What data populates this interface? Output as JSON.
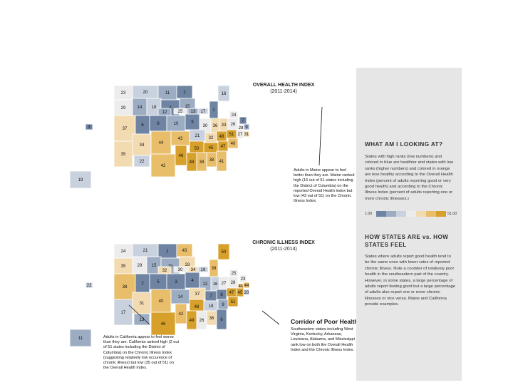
{
  "colors": {
    "scale": [
      "#6f84a3",
      "#9cadc3",
      "#c8d1dd",
      "#ececec",
      "#f2dbb1",
      "#e9be6a",
      "#d7a02a"
    ],
    "sidebar_bg": "#e6e6e6"
  },
  "maps": [
    {
      "title": "OVERALL HEALTH INDEX",
      "subtitle": "(2011-2014)",
      "tiles": [
        {
          "v": 23
        },
        {
          "v": 20
        },
        {
          "v": 11
        },
        {
          "v": 2
        },
        {
          "v": 16
        },
        {
          "v": 29
        },
        {
          "v": 14
        },
        {
          "v": 18
        },
        {
          "v": 4
        },
        {
          "v": 15
        },
        {
          "v": 1
        },
        {
          "v": 37
        },
        {
          "v": 6
        },
        {
          "v": 8
        },
        {
          "v": 10
        },
        {
          "v": 5
        },
        {
          "v": 30
        },
        {
          "v": 36
        },
        {
          "v": 33
        },
        {
          "v": 26
        },
        {
          "v": 35
        },
        {
          "v": 34
        },
        {
          "v": 44
        },
        {
          "v": 43
        },
        {
          "v": 21
        },
        {
          "v": 32
        },
        {
          "v": 48
        },
        {
          "v": 51
        },
        {
          "v": 27
        },
        {
          "v": 50
        },
        {
          "v": 45
        },
        {
          "v": 47
        },
        {
          "v": 40
        },
        {
          "v": 42
        },
        {
          "v": 46
        },
        {
          "v": 49
        },
        {
          "v": 39
        },
        {
          "v": 38
        },
        {
          "v": 41
        },
        {
          "v": 19
        },
        {
          "v": 3
        },
        {
          "v": 22
        },
        {
          "v": 12
        },
        {
          "v": 25
        },
        {
          "v": 13
        },
        {
          "v": 17
        },
        {
          "v": 24
        },
        {
          "v": 7
        },
        {
          "v": 28
        },
        {
          "v": 9
        },
        {
          "v": 31
        }
      ],
      "annotation": "Adults in Maine appear to feel better than they are. Maine ranked high (16 out of 51 states including the District of Columbia) on the reported Overall Health Index but low (43 out of 51) on the Chronic Illness Index."
    },
    {
      "title": "CHRONIC ILLNESS INDEX",
      "subtitle": "(2011-2014)",
      "tiles": [
        {
          "v": 24
        },
        {
          "v": 21
        },
        {
          "v": 1
        },
        {
          "v": 43
        },
        {
          "v": 50
        },
        {
          "v": 35
        },
        {
          "v": 29
        },
        {
          "v": 15
        },
        {
          "v": 10
        },
        {
          "v": 33
        },
        {
          "v": 39
        },
        {
          "v": 38
        },
        {
          "v": 2
        },
        {
          "v": 5
        },
        {
          "v": 3
        },
        {
          "v": 4
        },
        {
          "v": 12
        },
        {
          "v": 16
        },
        {
          "v": 27
        },
        {
          "v": 28
        },
        {
          "v": 17
        },
        {
          "v": 31
        },
        {
          "v": 40
        },
        {
          "v": 14
        },
        {
          "v": 37
        },
        {
          "v": 7
        },
        {
          "v": 8
        },
        {
          "v": 47
        },
        {
          "v": 45
        },
        {
          "v": 48
        },
        {
          "v": 18
        },
        {
          "v": 9
        },
        {
          "v": 51
        },
        {
          "v": 46
        },
        {
          "v": 42
        },
        {
          "v": 49
        },
        {
          "v": 26
        },
        {
          "v": 36
        },
        {
          "v": 6
        },
        {
          "v": 11
        },
        {
          "v": 22
        },
        {
          "v": 13
        },
        {
          "v": 32
        },
        {
          "v": 30
        },
        {
          "v": 34
        },
        {
          "v": 19
        },
        {
          "v": 25
        },
        {
          "v": 23
        },
        {
          "v": 41
        },
        {
          "v": 44
        },
        {
          "v": 20
        }
      ],
      "annotation": "Adults in California appear to feel worse than they are. California ranked high (2 out of 51 states including the District of Columbia) on the Chronic Illness Index (suggesting relatively low occurence of chronic illness) but low (35 out of 51) on the Overall Health Index.",
      "corridor_title": "Corridor of Poor Health",
      "corridor_text": "Southeastern states including West Virginia, Kentucky, Arkansas, Louisiana, Alabama, and Mississippi rank low on both the Overall Health Index and the Chronic Illness Index."
    }
  ],
  "sidebar": {
    "heading1": "WHAT AM I LOOKING AT?",
    "text1": "States with high ranks (low numbers) and colored in blue are healthier and states with low ranks (higher numbers) and colored in orange are less healthy according to the Overall Health Index (percent of adults reporting good or very good health) and according to the Chronic Illness Index (percent of adults reporting one or more chronic illnesses.)",
    "legend_min": "1.00",
    "legend_max": "51.00",
    "heading2": "HOW STATES ARE vs. HOW STATES FEEL",
    "text2": "States where adults report good health tend to be the same ones with lower rates of reported chronic illness. Note a coorider of relatively poor health in the southeastern part of the country. However, in some states, a large percentage of adults report feeling good but a large percentage of adults also report one or more chronic illnesses or vice versa. Maine and California provide examples."
  }
}
